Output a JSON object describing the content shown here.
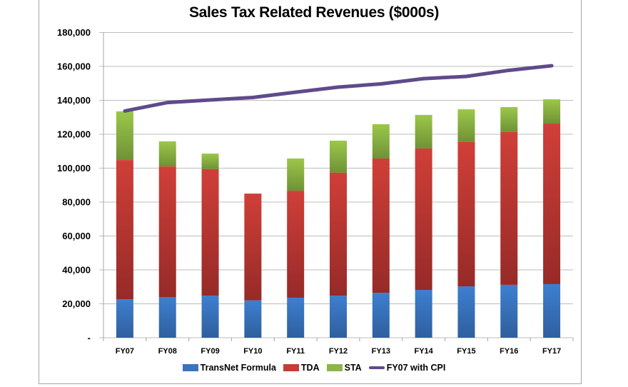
{
  "chart_data": {
    "type": "bar",
    "stacked": true,
    "title": "Sales Tax Related Revenues ($000s)",
    "xlabel": "",
    "ylabel": "",
    "ylim": [
      0,
      180000
    ],
    "yticks": [
      0,
      20000,
      40000,
      60000,
      80000,
      100000,
      120000,
      140000,
      160000,
      180000
    ],
    "ytick_labels": [
      "-",
      "20,000",
      "40,000",
      "60,000",
      "80,000",
      "100,000",
      "120,000",
      "140,000",
      "160,000",
      "180,000"
    ],
    "grid": true,
    "legend_position": "bottom",
    "categories": [
      "FY07",
      "FY08",
      "FY09",
      "FY10",
      "FY11",
      "FY12",
      "FY13",
      "FY14",
      "FY15",
      "FY16",
      "FY17"
    ],
    "series": [
      {
        "name": "TransNet Formula",
        "kind": "bar",
        "color": "#3a73c0",
        "values": [
          22700,
          24000,
          24800,
          22000,
          23600,
          24800,
          26500,
          28200,
          30300,
          31200,
          31600
        ]
      },
      {
        "name": "TDA",
        "kind": "bar",
        "color": "#c83c36",
        "values": [
          82100,
          77000,
          74600,
          63000,
          63100,
          72500,
          79200,
          83400,
          85100,
          90100,
          94700
        ]
      },
      {
        "name": "STA",
        "kind": "bar",
        "color": "#8db548",
        "values": [
          28700,
          14800,
          9200,
          0,
          19000,
          18900,
          20200,
          19800,
          19300,
          14700,
          14300
        ]
      },
      {
        "name": "FY07 with CPI",
        "kind": "line",
        "color": "#5f4a8b",
        "values": [
          133700,
          138700,
          140200,
          141700,
          144800,
          147800,
          149700,
          152800,
          154100,
          157700,
          160400
        ]
      }
    ]
  }
}
